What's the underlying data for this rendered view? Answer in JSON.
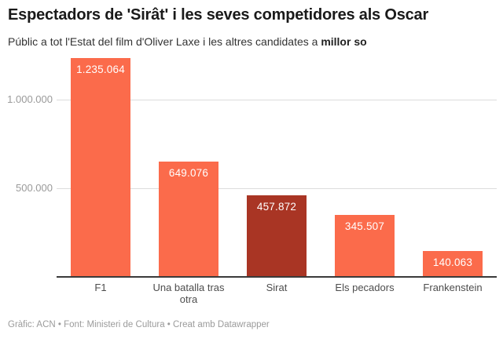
{
  "header": {
    "title": "Espectadors de 'Sirât' i les seves competidores als Oscar",
    "subtitle_prefix": "Públic a tot l'Estat del film d'Oliver Laxe i les altres candidates a ",
    "subtitle_bold": "millor so"
  },
  "footer": {
    "text": "Gràfic: ACN • Font: Ministeri de Cultura  • Creat amb Datawrapper"
  },
  "chart_data": {
    "type": "bar",
    "title": "Espectadors de 'Sirât' i les seves competidores als Oscar",
    "subtitle": "Públic a tot l'Estat del film d'Oliver Laxe i les altres candidates a millor so",
    "categories": [
      "F1",
      "Una batalla tras otra",
      "Sirat",
      "Els pecadors",
      "Frankenstein"
    ],
    "values": [
      1235064,
      649076,
      457872,
      345507,
      140063
    ],
    "value_labels": [
      "1.235.064",
      "649.076",
      "457.872",
      "345.507",
      "140.063"
    ],
    "highlight_index": 2,
    "colors": {
      "bar": "#FB6B4B",
      "highlight_bar": "#A93524",
      "value_label_text": "#ffffff",
      "gridline": "#dcdcdc",
      "axis_line": "#3a3a3a"
    },
    "xlabel": "",
    "ylabel": "",
    "ylim": [
      0,
      1280000
    ],
    "grid": true,
    "legend": "none",
    "y_axis": {
      "ticks": [
        500000,
        1000000
      ],
      "tick_labels": [
        "500.000",
        "1.000.000"
      ]
    }
  }
}
